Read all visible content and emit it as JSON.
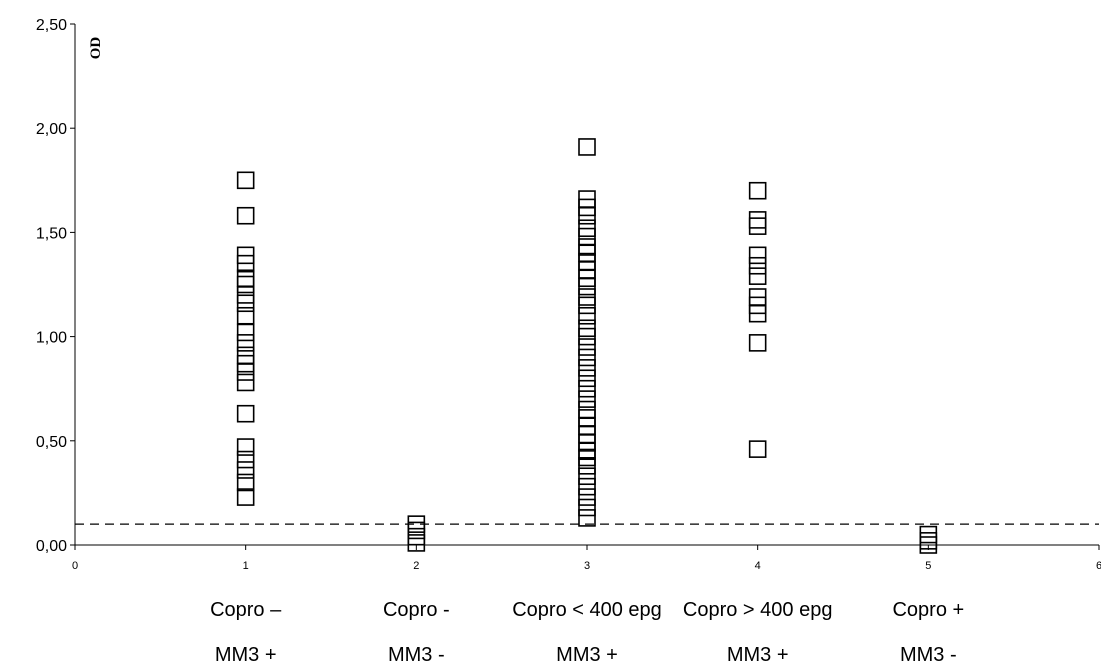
{
  "chart_data": {
    "type": "scatter",
    "ylabel": "OD",
    "xlim": [
      0,
      6
    ],
    "ylim": [
      0,
      2.5
    ],
    "y_ticks": [
      "0,00",
      "0,50",
      "1,00",
      "1,50",
      "2,00",
      "2,50"
    ],
    "x_ticks": [
      "0",
      "1",
      "2",
      "3",
      "4",
      "5",
      "6"
    ],
    "cutoff": 0.1,
    "marker": "open-square",
    "categories": [
      {
        "x": 1,
        "line1": "Copro –",
        "line2": "MM3 +"
      },
      {
        "x": 2,
        "line1": "Copro -",
        "line2": "MM3 -"
      },
      {
        "x": 3,
        "line1": "Copro < 400 epg",
        "line2": "MM3 +"
      },
      {
        "x": 4,
        "line1": "Copro > 400 epg",
        "line2": "MM3 +"
      },
      {
        "x": 5,
        "line1": "Copro +",
        "line2": "MM3 -"
      }
    ],
    "series": [
      {
        "x": 1,
        "y": [
          1.75,
          1.58,
          1.39,
          1.35,
          1.28,
          1.25,
          1.2,
          1.16,
          1.1,
          1.02,
          0.97,
          0.91,
          0.87,
          0.83,
          0.78,
          0.63,
          0.47,
          0.41,
          0.36,
          0.3,
          0.23
        ]
      },
      {
        "x": 2,
        "y": [
          0.1,
          0.07,
          0.04,
          0.01
        ]
      },
      {
        "x": 3,
        "y": [
          1.91,
          1.66,
          1.62,
          1.58,
          1.52,
          1.48,
          1.43,
          1.4,
          1.36,
          1.32,
          1.28,
          1.24,
          1.19,
          1.15,
          1.1,
          1.04,
          1.0,
          0.95,
          0.9,
          0.85,
          0.8,
          0.75,
          0.7,
          0.65,
          0.61,
          0.57,
          0.53,
          0.49,
          0.45,
          0.42,
          0.38,
          0.33,
          0.28,
          0.23,
          0.18,
          0.13
        ]
      },
      {
        "x": 4,
        "y": [
          1.7,
          1.56,
          1.53,
          1.39,
          1.34,
          1.29,
          1.19,
          1.15,
          1.11,
          0.97,
          0.46
        ]
      },
      {
        "x": 5,
        "y": [
          0.05,
          0.02,
          0.0
        ]
      }
    ]
  }
}
